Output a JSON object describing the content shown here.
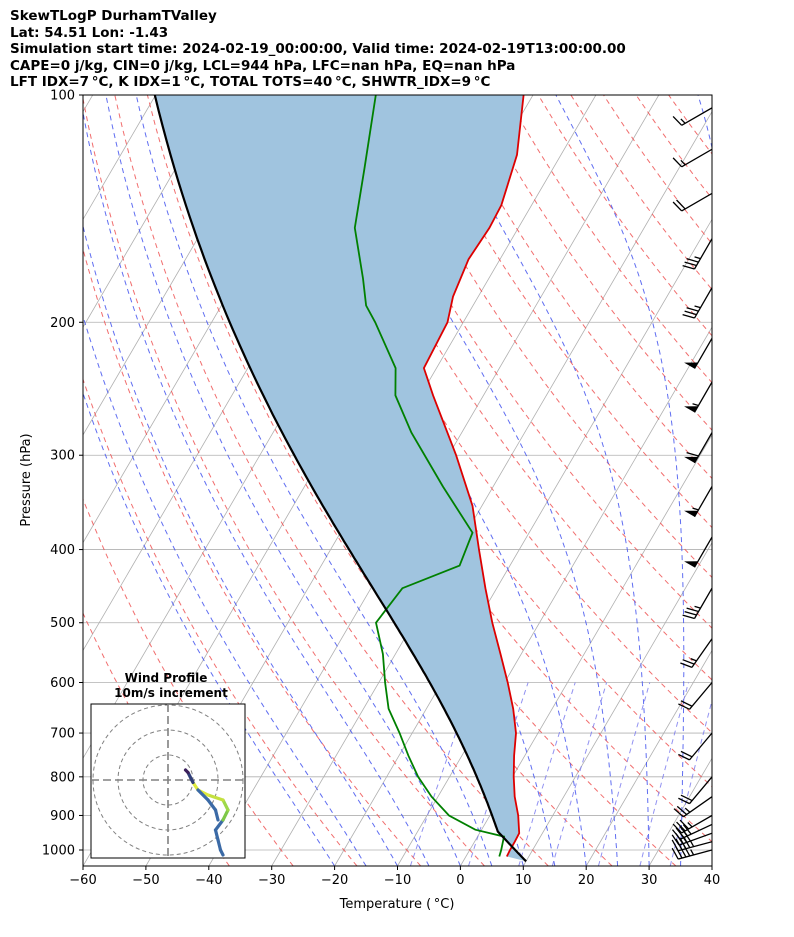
{
  "header": {
    "line1": "SkewTLogP DurhamTValley",
    "line2": "Lat: 54.51   Lon: -1.43",
    "line3": "Simulation start time: 2024-02-19_00:00:00, Valid time: 2024-02-19T13:00:00.00",
    "line4": "CAPE=0 j/kg, CIN=0 j/kg, LCL=944 hPa, LFC=nan hPa, EQ=nan hPa",
    "line5": "LFT IDX=7 °C, K IDX=1 °C, TOTAL TOTS=40 °C, SHWTR_IDX=9 °C"
  },
  "chart_data": {
    "type": "skewt",
    "xlabel": "Temperature ( °C)",
    "ylabel": "Pressure (hPa)",
    "xlim": [
      -60,
      40
    ],
    "ylim": [
      1050,
      100
    ],
    "xticks": [
      -60,
      -50,
      -40,
      -30,
      -20,
      -10,
      0,
      10,
      20,
      30,
      40
    ],
    "xtick_labels": [
      "−60",
      "−50",
      "−40",
      "−30",
      "−20",
      "−10",
      "0",
      "10",
      "20",
      "30",
      "40"
    ],
    "yticks": [
      1000,
      900,
      800,
      700,
      600,
      500,
      400,
      300,
      200,
      100
    ],
    "ytick_labels": [
      "1000",
      "900",
      "800",
      "700",
      "600",
      "500",
      "400",
      "300",
      "200",
      "100"
    ],
    "grid": true,
    "colors": {
      "temperature": "#dd0000",
      "dewpoint": "#008000",
      "parcel": "#000000",
      "cape_fill": "#a0c4df",
      "dry_adiabat": "#ee5555",
      "moist_adiabat": "#4455ee",
      "mixing_ratio": "#7777ee",
      "barbs": "#000000"
    },
    "temperature": [
      {
        "p": 1020,
        "t": 6.5
      },
      {
        "p": 1000,
        "t": 6.4
      },
      {
        "p": 975,
        "t": 6.4
      },
      {
        "p": 950,
        "t": 6.3
      },
      {
        "p": 900,
        "t": 4.5
      },
      {
        "p": 850,
        "t": 2.2
      },
      {
        "p": 800,
        "t": 0.2
      },
      {
        "p": 750,
        "t": -1.7
      },
      {
        "p": 700,
        "t": -3.5
      },
      {
        "p": 650,
        "t": -6.2
      },
      {
        "p": 600,
        "t": -9.5
      },
      {
        "p": 550,
        "t": -13.3
      },
      {
        "p": 500,
        "t": -17.5
      },
      {
        "p": 450,
        "t": -21.8
      },
      {
        "p": 400,
        "t": -26.4
      },
      {
        "p": 350,
        "t": -31.5
      },
      {
        "p": 300,
        "t": -38.8
      },
      {
        "p": 250,
        "t": -48.0
      },
      {
        "p": 230,
        "t": -52.0
      },
      {
        "p": 200,
        "t": -52.5
      },
      {
        "p": 185,
        "t": -54.0
      },
      {
        "p": 165,
        "t": -55.0
      },
      {
        "p": 150,
        "t": -54.6
      },
      {
        "p": 140,
        "t": -54.8
      },
      {
        "p": 120,
        "t": -57.0
      },
      {
        "p": 100,
        "t": -61.5
      }
    ],
    "dewpoint": [
      {
        "p": 1020,
        "t": 5.3
      },
      {
        "p": 1000,
        "t": 5.0
      },
      {
        "p": 960,
        "t": 4.2
      },
      {
        "p": 940,
        "t": -1.0
      },
      {
        "p": 900,
        "t": -6.5
      },
      {
        "p": 850,
        "t": -11.0
      },
      {
        "p": 800,
        "t": -15.0
      },
      {
        "p": 750,
        "t": -18.5
      },
      {
        "p": 700,
        "t": -22.0
      },
      {
        "p": 650,
        "t": -26.0
      },
      {
        "p": 600,
        "t": -29.0
      },
      {
        "p": 550,
        "t": -32.0
      },
      {
        "p": 500,
        "t": -36.0
      },
      {
        "p": 450,
        "t": -35.0
      },
      {
        "p": 420,
        "t": -28.0
      },
      {
        "p": 380,
        "t": -29.0
      },
      {
        "p": 330,
        "t": -38.0
      },
      {
        "p": 280,
        "t": -48.0
      },
      {
        "p": 250,
        "t": -54.0
      },
      {
        "p": 230,
        "t": -56.5
      },
      {
        "p": 200,
        "t": -64.0
      },
      {
        "p": 190,
        "t": -67.0
      },
      {
        "p": 175,
        "t": -70.0
      },
      {
        "p": 150,
        "t": -76.0
      },
      {
        "p": 125,
        "t": -80.0
      },
      {
        "p": 100,
        "t": -85.0
      }
    ],
    "wind_barbs": [
      {
        "p": 1000,
        "speed_kt": 45,
        "dir_deg": 285
      },
      {
        "p": 975,
        "speed_kt": 45,
        "dir_deg": 285
      },
      {
        "p": 950,
        "speed_kt": 40,
        "dir_deg": 290
      },
      {
        "p": 925,
        "speed_kt": 40,
        "dir_deg": 295
      },
      {
        "p": 900,
        "speed_kt": 35,
        "dir_deg": 300
      },
      {
        "p": 850,
        "speed_kt": 25,
        "dir_deg": 305
      },
      {
        "p": 800,
        "speed_kt": 20,
        "dir_deg": 320
      },
      {
        "p": 700,
        "speed_kt": 20,
        "dir_deg": 320
      },
      {
        "p": 600,
        "speed_kt": 20,
        "dir_deg": 320
      },
      {
        "p": 525,
        "speed_kt": 25,
        "dir_deg": 325
      },
      {
        "p": 450,
        "speed_kt": 35,
        "dir_deg": 330
      },
      {
        "p": 385,
        "speed_kt": 50,
        "dir_deg": 330
      },
      {
        "p": 330,
        "speed_kt": 55,
        "dir_deg": 330
      },
      {
        "p": 280,
        "speed_kt": 60,
        "dir_deg": 330
      },
      {
        "p": 240,
        "speed_kt": 55,
        "dir_deg": 330
      },
      {
        "p": 210,
        "speed_kt": 50,
        "dir_deg": 330
      },
      {
        "p": 180,
        "speed_kt": 35,
        "dir_deg": 330
      },
      {
        "p": 155,
        "speed_kt": 35,
        "dir_deg": 330
      },
      {
        "p": 135,
        "speed_kt": 20,
        "dir_deg": 300
      },
      {
        "p": 118,
        "speed_kt": 15,
        "dir_deg": 300
      },
      {
        "p": 104,
        "speed_kt": 15,
        "dir_deg": 300
      }
    ],
    "hodograph": {
      "title_line1": "Wind Profile",
      "title_line2": "10m/s increment",
      "ring_step_ms": 10,
      "ring_count": 3,
      "range_ms": 30,
      "points": [
        {
          "u": 22,
          "v": -30,
          "c": "#3b6aa6"
        },
        {
          "u": 21,
          "v": -28,
          "c": "#3b6aa6"
        },
        {
          "u": 20,
          "v": -24,
          "c": "#3b6aa6"
        },
        {
          "u": 19,
          "v": -20,
          "c": "#3b6aa6"
        },
        {
          "u": 22,
          "v": -16,
          "c": "#7ec848"
        },
        {
          "u": 24,
          "v": -12,
          "c": "#9ed84a"
        },
        {
          "u": 22,
          "v": -8,
          "c": "#c4e040"
        },
        {
          "u": 16,
          "v": -6,
          "c": "#dde93e"
        },
        {
          "u": 12,
          "v": -4,
          "c": "#dde93e"
        },
        {
          "u": 10,
          "v": -1,
          "c": "#2f3e78"
        },
        {
          "u": 8,
          "v": 3,
          "c": "#3b1f5a"
        },
        {
          "u": 7,
          "v": 4,
          "c": "#3b1f5a"
        }
      ],
      "second_branch": [
        {
          "u": 12,
          "v": -4,
          "c": "#3b6aa6"
        },
        {
          "u": 16,
          "v": -8,
          "c": "#3b6aa6"
        },
        {
          "u": 19,
          "v": -12,
          "c": "#3b6aa6"
        },
        {
          "u": 20,
          "v": -16,
          "c": "#3b6aa6"
        }
      ]
    }
  }
}
